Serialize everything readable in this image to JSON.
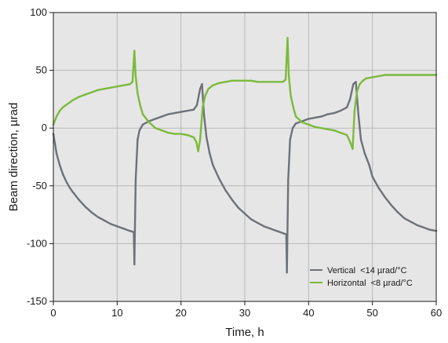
{
  "chart_data": {
    "type": "line",
    "xlabel": "Time, h",
    "ylabel": "Beam direction, µrad",
    "xlim": [
      0,
      60
    ],
    "ylim": [
      -150,
      100
    ],
    "x_ticks": [
      0,
      10,
      20,
      30,
      40,
      50,
      60
    ],
    "y_ticks": [
      -150,
      -100,
      -50,
      0,
      50,
      100
    ],
    "grid": true,
    "legend_position": "bottom-right",
    "background": "#e6e6e6",
    "series": [
      {
        "name": "Vertical  <14 µrad/°C",
        "color": "#6d7278",
        "x": [
          0,
          0.5,
          1,
          1.5,
          2,
          2.5,
          3,
          4,
          5,
          6,
          7,
          8,
          9,
          10,
          11,
          12,
          12.6,
          12.7,
          12.9,
          13.2,
          13.5,
          14,
          15,
          16,
          17,
          18,
          19,
          20,
          21,
          22,
          22.5,
          23,
          23.3,
          23.6,
          24,
          24.5,
          25,
          26,
          27,
          28,
          29,
          30,
          31,
          32,
          33,
          34,
          35,
          36,
          36.5,
          36.6,
          36.8,
          37.1,
          37.5,
          38,
          39,
          40,
          41,
          42,
          43,
          44,
          45,
          46,
          46.5,
          47,
          47.4,
          47.8,
          48.2,
          48.8,
          49.5,
          50,
          51,
          52,
          53,
          54,
          55,
          56,
          57,
          58,
          59,
          60
        ],
        "values": [
          -5,
          -22,
          -32,
          -40,
          -46,
          -51,
          -55,
          -62,
          -68,
          -73,
          -77,
          -80,
          -83,
          -85,
          -87,
          -89,
          -90,
          -118,
          -45,
          -10,
          -2,
          3,
          6,
          8,
          10,
          12,
          13,
          14,
          15,
          16,
          20,
          34,
          38,
          12,
          -8,
          -22,
          -32,
          -44,
          -54,
          -62,
          -69,
          -74,
          -79,
          -82,
          -85,
          -87,
          -89,
          -91,
          -92,
          -125,
          -45,
          -10,
          0,
          4,
          6,
          8,
          9,
          10,
          12,
          13,
          15,
          18,
          25,
          38,
          40,
          12,
          -10,
          -22,
          -32,
          -42,
          -52,
          -60,
          -67,
          -73,
          -78,
          -81,
          -84,
          -86,
          -88,
          -89
        ]
      },
      {
        "name": "Horizontal  <8 µrad/°C",
        "color": "#7cba3c",
        "x": [
          0,
          0.5,
          1,
          1.5,
          2,
          2.5,
          3,
          4,
          5,
          6,
          7,
          8,
          9,
          10,
          11,
          12,
          12.4,
          12.7,
          12.9,
          13.2,
          13.6,
          14,
          15,
          16,
          17,
          18,
          19,
          20,
          21,
          22,
          22.4,
          22.7,
          23,
          23.4,
          23.8,
          24.3,
          25,
          26,
          27,
          28,
          29,
          30,
          31,
          32,
          33,
          34,
          35,
          36,
          36.4,
          36.7,
          36.9,
          37.2,
          37.6,
          38,
          39,
          40,
          41,
          42,
          43,
          44,
          45,
          46,
          46.5,
          46.9,
          47.2,
          47.6,
          48,
          48.5,
          49,
          50,
          51,
          52,
          53,
          54,
          55,
          56,
          57,
          58,
          59,
          60
        ],
        "values": [
          3,
          10,
          15,
          18,
          20,
          22,
          24,
          27,
          29,
          31,
          33,
          34,
          35,
          36,
          37,
          38,
          40,
          67,
          45,
          30,
          20,
          12,
          5,
          0,
          -2,
          -4,
          -5,
          -5,
          -6,
          -8,
          -12,
          -20,
          -10,
          18,
          28,
          34,
          37,
          39,
          40,
          41,
          41,
          41,
          41,
          40,
          40,
          40,
          40,
          40,
          42,
          78,
          45,
          28,
          18,
          10,
          5,
          3,
          1,
          0,
          -1,
          -2,
          -4,
          -6,
          -12,
          -18,
          15,
          32,
          38,
          41,
          43,
          44,
          45,
          46,
          46,
          46,
          46,
          46,
          46,
          46,
          46,
          46
        ]
      }
    ]
  }
}
